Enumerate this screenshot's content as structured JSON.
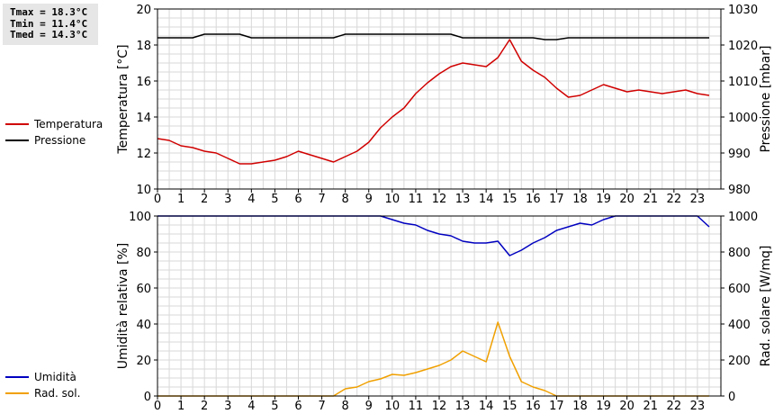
{
  "stats": {
    "tmax": "Tmax = 18.3°C",
    "tmin": "Tmin = 11.4°C",
    "tmed": "Tmed = 14.3°C"
  },
  "colors": {
    "temperatura": "#d00000",
    "pressione": "#000000",
    "umidita": "#0000c0",
    "radsol": "#f0a000",
    "grid": "#d8d8d8"
  },
  "chart_data": [
    {
      "type": "line",
      "xlim": [
        0,
        24
      ],
      "x_ticks": [
        "0",
        "1",
        "2",
        "3",
        "4",
        "5",
        "6",
        "7",
        "8",
        "9",
        "10",
        "11",
        "12",
        "13",
        "14",
        "15",
        "16",
        "17",
        "18",
        "19",
        "20",
        "21",
        "22",
        "23"
      ],
      "ylabel": "Temperatura [°C]",
      "ylim": [
        10,
        20
      ],
      "y_ticks": [
        "10",
        "12",
        "14",
        "16",
        "18",
        "20"
      ],
      "y2label": "Pressione [mbar]",
      "y2lim": [
        980,
        1030
      ],
      "y2_ticks": [
        "980",
        "990",
        "1000",
        "1010",
        "1020",
        "1030"
      ],
      "grid": true,
      "legend_position": "left",
      "series": [
        {
          "name": "Temperatura",
          "axis": "left",
          "x": [
            0,
            0.5,
            1,
            1.5,
            2,
            2.5,
            3,
            3.5,
            4,
            4.5,
            5,
            5.5,
            6,
            6.5,
            7,
            7.5,
            8,
            8.5,
            9,
            9.5,
            10,
            10.5,
            11,
            11.5,
            12,
            12.5,
            13,
            13.5,
            14,
            14.5,
            15,
            15.5,
            16,
            16.5,
            17,
            17.5,
            18,
            18.5,
            19,
            19.5,
            20,
            20.5,
            21,
            21.5,
            22,
            22.5,
            23,
            23.5
          ],
          "y": [
            12.8,
            12.7,
            12.4,
            12.3,
            12.1,
            12.0,
            11.7,
            11.4,
            11.4,
            11.5,
            11.6,
            11.8,
            12.1,
            11.9,
            11.7,
            11.5,
            11.8,
            12.1,
            12.6,
            13.4,
            14.0,
            14.5,
            15.3,
            15.9,
            16.4,
            16.8,
            17.0,
            16.9,
            16.8,
            17.3,
            18.3,
            17.1,
            16.6,
            16.2,
            15.6,
            15.1,
            15.2,
            15.5,
            15.8,
            15.6,
            15.4,
            15.5,
            15.4,
            15.3,
            15.4,
            15.5,
            15.3,
            15.2
          ]
        },
        {
          "name": "Pressione",
          "axis": "right",
          "x": [
            0,
            0.5,
            1,
            1.5,
            2,
            2.5,
            3,
            3.5,
            4,
            4.5,
            5,
            5.5,
            6,
            6.5,
            7,
            7.5,
            8,
            8.5,
            9,
            9.5,
            10,
            10.5,
            11,
            11.5,
            12,
            12.5,
            13,
            13.5,
            14,
            14.5,
            15,
            15.5,
            16,
            16.5,
            17,
            17.5,
            18,
            18.5,
            19,
            19.5,
            20,
            20.5,
            21,
            21.5,
            22,
            22.5,
            23,
            23.5
          ],
          "y": [
            1022,
            1022,
            1022,
            1022,
            1023,
            1023,
            1023,
            1023,
            1022,
            1022,
            1022,
            1022,
            1022,
            1022,
            1022,
            1022,
            1023,
            1023,
            1023,
            1023,
            1023,
            1023,
            1023,
            1023,
            1023,
            1023,
            1022,
            1022,
            1022,
            1022,
            1022,
            1022,
            1022,
            1021.5,
            1021.5,
            1022,
            1022,
            1022,
            1022,
            1022,
            1022,
            1022,
            1022,
            1022,
            1022,
            1022,
            1022,
            1022
          ]
        }
      ]
    },
    {
      "type": "line",
      "xlim": [
        0,
        24
      ],
      "x_ticks": [
        "0",
        "1",
        "2",
        "3",
        "4",
        "5",
        "6",
        "7",
        "8",
        "9",
        "10",
        "11",
        "12",
        "13",
        "14",
        "15",
        "16",
        "17",
        "18",
        "19",
        "20",
        "21",
        "22",
        "23"
      ],
      "ylabel": "Umidità relativa [%]",
      "ylim": [
        0,
        100
      ],
      "y_ticks": [
        "0",
        "20",
        "40",
        "60",
        "80",
        "100"
      ],
      "y2label": "Rad. solare [W/mq]",
      "y2lim": [
        0,
        1000
      ],
      "y2_ticks": [
        "0",
        "200",
        "400",
        "600",
        "800",
        "1000"
      ],
      "grid": true,
      "legend_position": "left",
      "series": [
        {
          "name": "Umidità",
          "axis": "left",
          "x": [
            0,
            0.5,
            1,
            1.5,
            2,
            2.5,
            3,
            3.5,
            4,
            4.5,
            5,
            5.5,
            6,
            6.5,
            7,
            7.5,
            8,
            8.5,
            9,
            9.5,
            10,
            10.5,
            11,
            11.5,
            12,
            12.5,
            13,
            13.5,
            14,
            14.5,
            15,
            15.5,
            16,
            16.5,
            17,
            17.5,
            18,
            18.5,
            19,
            19.5,
            20,
            20.5,
            21,
            21.5,
            22,
            22.5,
            23,
            23.5
          ],
          "y": [
            100,
            100,
            100,
            100,
            100,
            100,
            100,
            100,
            100,
            100,
            100,
            100,
            100,
            100,
            100,
            100,
            100,
            100,
            100,
            100,
            98,
            96,
            95,
            92,
            90,
            89,
            86,
            85,
            85,
            86,
            78,
            81,
            85,
            88,
            92,
            94,
            96,
            95,
            98,
            100,
            100,
            100,
            100,
            100,
            100,
            100,
            100,
            94
          ]
        },
        {
          "name": "Rad. sol.",
          "axis": "right",
          "x": [
            0,
            0.5,
            1,
            1.5,
            2,
            2.5,
            3,
            3.5,
            4,
            4.5,
            5,
            5.5,
            6,
            6.5,
            7,
            7.5,
            8,
            8.5,
            9,
            9.5,
            10,
            10.5,
            11,
            11.5,
            12,
            12.5,
            13,
            13.5,
            14,
            14.5,
            15,
            15.5,
            16,
            16.5,
            17,
            17.5,
            18,
            18.5,
            19,
            19.5,
            20,
            20.5,
            21,
            21.5,
            22,
            22.5,
            23,
            23.5
          ],
          "y": [
            0,
            0,
            0,
            0,
            0,
            0,
            0,
            0,
            0,
            0,
            0,
            0,
            0,
            0,
            0,
            0,
            40,
            50,
            80,
            95,
            120,
            115,
            130,
            150,
            170,
            200,
            250,
            220,
            190,
            410,
            220,
            80,
            50,
            30,
            0,
            0,
            0,
            0,
            0,
            0,
            0,
            0,
            0,
            0,
            0,
            0,
            0,
            0
          ]
        }
      ]
    }
  ]
}
